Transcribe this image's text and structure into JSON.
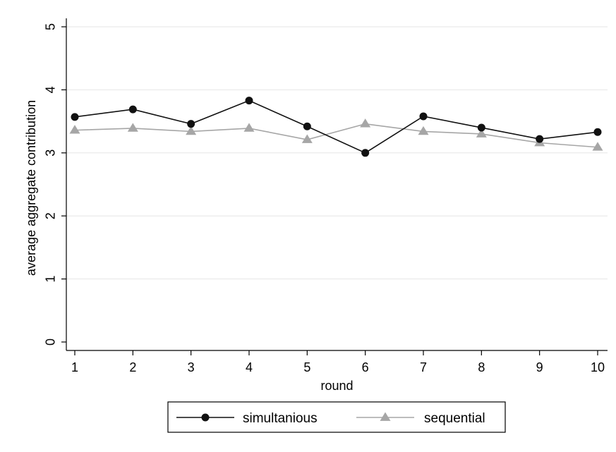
{
  "chart_data": {
    "type": "line",
    "xlabel": "round",
    "ylabel": "average aggregate contribution",
    "x": [
      1,
      2,
      3,
      4,
      5,
      6,
      7,
      8,
      9,
      10
    ],
    "xlim": [
      1,
      10
    ],
    "ylim": [
      0,
      5
    ],
    "xticks": [
      "1",
      "2",
      "3",
      "4",
      "5",
      "6",
      "7",
      "8",
      "9",
      "10"
    ],
    "yticks": [
      "0",
      "1",
      "2",
      "3",
      "4",
      "5"
    ],
    "grid": "horizontal",
    "legend_position": "bottom",
    "series": [
      {
        "name": "simultanious",
        "color": "#111111",
        "marker": "circle",
        "values": [
          3.57,
          3.69,
          3.46,
          3.83,
          3.42,
          3.0,
          3.58,
          3.4,
          3.22,
          3.33
        ]
      },
      {
        "name": "sequential",
        "color": "#a6a6a6",
        "marker": "triangle",
        "values": [
          3.36,
          3.39,
          3.34,
          3.39,
          3.21,
          3.46,
          3.34,
          3.3,
          3.16,
          3.09
        ]
      }
    ]
  }
}
